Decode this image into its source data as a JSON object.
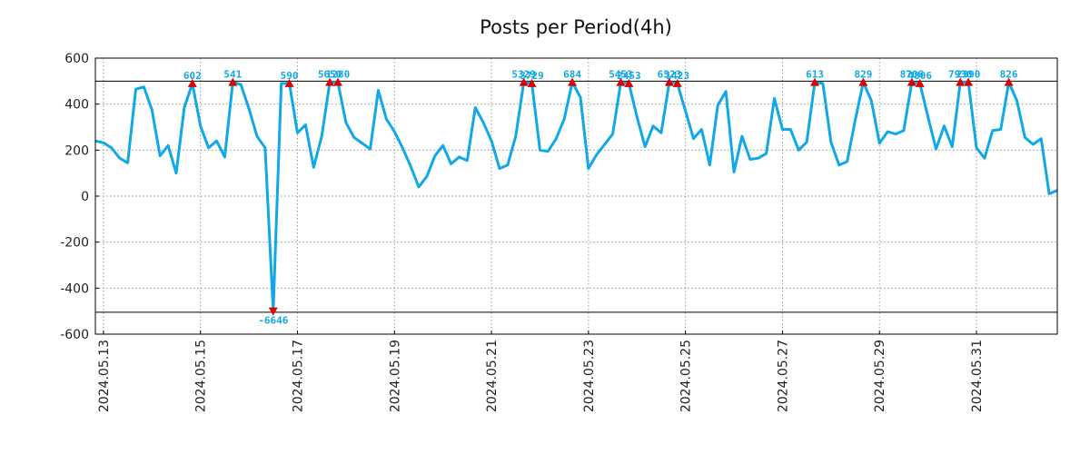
{
  "chart_data": {
    "type": "line",
    "title": "Posts per Period(4h)",
    "xlabel": "",
    "ylabel": "",
    "ylim": [
      -600,
      600
    ],
    "yticks": [
      600,
      400,
      200,
      0,
      -200,
      -400,
      -600
    ],
    "ytick_labels": [
      "600",
      "400",
      "200",
      "0",
      "-200",
      "-400",
      "-600"
    ],
    "x_start_date": "2024-05-12T20:00",
    "period_hours": 4,
    "xticks": [
      {
        "label": "2024.05.13",
        "index": 1
      },
      {
        "label": "2024.05.15",
        "index": 13
      },
      {
        "label": "2024.05.17",
        "index": 25
      },
      {
        "label": "2024.05.19",
        "index": 37
      },
      {
        "label": "2024.05.21",
        "index": 49
      },
      {
        "label": "2024.05.23",
        "index": 61
      },
      {
        "label": "2024.05.25",
        "index": 73
      },
      {
        "label": "2024.05.27",
        "index": 85
      },
      {
        "label": "2024.05.29",
        "index": 97
      },
      {
        "label": "2024.05.31",
        "index": 109
      }
    ],
    "grid": true,
    "clip_lines": [
      500,
      -505
    ],
    "line_color": "#10a8e8",
    "marker_color": "#dd0000",
    "label_color": "#10a8e8",
    "series": [
      {
        "name": "posts",
        "values": [
          240,
          232,
          210,
          165,
          145,
          465,
          475,
          375,
          175,
          220,
          100,
          385,
          490,
          305,
          210,
          240,
          170,
          495,
          485,
          380,
          260,
          210,
          -500,
          490,
          490,
          275,
          310,
          125,
          260,
          495,
          495,
          320,
          255,
          230,
          205,
          460,
          335,
          280,
          210,
          130,
          40,
          85,
          175,
          220,
          140,
          170,
          155,
          385,
          320,
          240,
          120,
          135,
          260,
          495,
          490,
          200,
          195,
          250,
          335,
          495,
          430,
          120,
          180,
          225,
          270,
          495,
          490,
          345,
          215,
          305,
          275,
          495,
          490,
          370,
          250,
          290,
          135,
          395,
          455,
          105,
          260,
          160,
          165,
          185,
          425,
          290,
          290,
          200,
          235,
          495,
          490,
          235,
          135,
          150,
          330,
          495,
          415,
          230,
          280,
          270,
          285,
          495,
          490,
          345,
          205,
          305,
          215,
          495,
          495,
          210,
          165,
          285,
          290,
          495,
          415,
          255,
          225,
          250,
          10,
          25
        ]
      }
    ],
    "annotations": [
      {
        "label": "602",
        "index": 12,
        "kind": "high"
      },
      {
        "label": "541",
        "index": 17,
        "kind": "high"
      },
      {
        "label": "590",
        "index": 24,
        "kind": "high"
      },
      {
        "label": "5650",
        "index": 29,
        "kind": "high"
      },
      {
        "label": "1280",
        "index": 30,
        "kind": "high"
      },
      {
        "label": "5329",
        "index": 53,
        "kind": "high"
      },
      {
        "label": "3729",
        "index": 54,
        "kind": "high"
      },
      {
        "label": "684",
        "index": 59,
        "kind": "high"
      },
      {
        "label": "5453",
        "index": 65,
        "kind": "high"
      },
      {
        "label": "2453",
        "index": 66,
        "kind": "high"
      },
      {
        "label": "6523",
        "index": 71,
        "kind": "high"
      },
      {
        "label": "1423",
        "index": 72,
        "kind": "high"
      },
      {
        "label": "613",
        "index": 89,
        "kind": "high"
      },
      {
        "label": "829",
        "index": 95,
        "kind": "high"
      },
      {
        "label": "8706",
        "index": 101,
        "kind": "high"
      },
      {
        "label": "4806",
        "index": 102,
        "kind": "high"
      },
      {
        "label": "7930",
        "index": 107,
        "kind": "high"
      },
      {
        "label": "2390",
        "index": 108,
        "kind": "high"
      },
      {
        "label": "826",
        "index": 113,
        "kind": "high"
      },
      {
        "label": "-6646",
        "index": 22,
        "kind": "low"
      }
    ]
  }
}
